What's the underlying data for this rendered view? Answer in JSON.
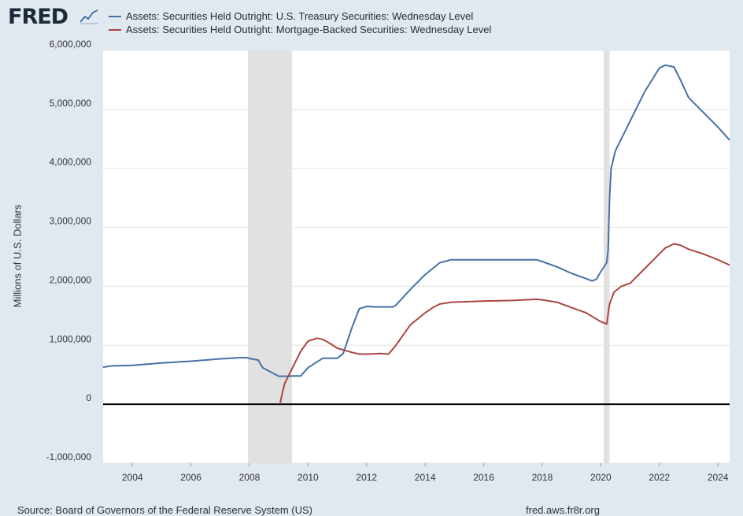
{
  "header": {
    "logo_text": "FRED",
    "logo_icon": "chart-line-icon"
  },
  "colors": {
    "background": "#e1e9f0",
    "plot_bg": "#ffffff",
    "recession": "#e1e1e1",
    "treasury": "#4572a7",
    "mbs": "#aa4643",
    "zero_line": "#000000"
  },
  "footer": {
    "source": "Source: Board of Governors of the Federal Reserve System (US)",
    "url": "fred.aws.fr8r.org"
  },
  "chart_data": {
    "type": "line",
    "title": "",
    "xlabel": "",
    "ylabel": "Millions of U.S. Dollars",
    "xlim": [
      2003.0,
      2024.4
    ],
    "ylim": [
      -1000000,
      6000000
    ],
    "y_ticks": [
      -1000000,
      0,
      1000000,
      2000000,
      3000000,
      4000000,
      5000000,
      6000000
    ],
    "y_tick_labels": [
      "-1,000,000",
      "0",
      "1,000,000",
      "2,000,000",
      "3,000,000",
      "4,000,000",
      "5,000,000",
      "6,000,000"
    ],
    "x_ticks": [
      2004,
      2006,
      2008,
      2010,
      2012,
      2014,
      2016,
      2018,
      2020,
      2022,
      2024
    ],
    "x_tick_labels": [
      "2004",
      "2006",
      "2008",
      "2010",
      "2012",
      "2014",
      "2016",
      "2018",
      "2020",
      "2022",
      "2024"
    ],
    "grid": true,
    "recessions": [
      [
        2007.95,
        2009.45
      ],
      [
        2020.1,
        2020.3
      ]
    ],
    "series": [
      {
        "name": "Assets: Securities Held Outright: U.S. Treasury Securities: Wednesday Level",
        "color": "#4572a7",
        "x": [
          2003.0,
          2003.3,
          2004.0,
          2005.0,
          2006.0,
          2007.0,
          2007.7,
          2007.9,
          2008.1,
          2008.3,
          2008.45,
          2009.0,
          2009.25,
          2009.5,
          2009.75,
          2010.0,
          2010.5,
          2010.75,
          2011.0,
          2011.2,
          2011.5,
          2011.75,
          2012.0,
          2012.3,
          2012.6,
          2012.9,
          2013.0,
          2013.5,
          2014.0,
          2014.5,
          2014.9,
          2015.5,
          2016.0,
          2017.0,
          2017.8,
          2018.0,
          2018.5,
          2019.0,
          2019.5,
          2019.7,
          2019.85,
          2020.0,
          2020.2,
          2020.25,
          2020.3,
          2020.35,
          2020.5,
          2021.0,
          2021.5,
          2022.0,
          2022.2,
          2022.5,
          2022.7,
          2023.0,
          2023.5,
          2024.0,
          2024.4
        ],
        "values": [
          630000,
          650000,
          660000,
          700000,
          730000,
          770000,
          790000,
          790000,
          765000,
          750000,
          620000,
          475000,
          475000,
          480000,
          480000,
          620000,
          780000,
          780000,
          780000,
          860000,
          1300000,
          1620000,
          1660000,
          1650000,
          1650000,
          1650000,
          1680000,
          1950000,
          2200000,
          2400000,
          2450000,
          2450000,
          2450000,
          2450000,
          2450000,
          2420000,
          2330000,
          2220000,
          2130000,
          2090000,
          2120000,
          2250000,
          2400000,
          2600000,
          3500000,
          4000000,
          4300000,
          4800000,
          5300000,
          5700000,
          5750000,
          5720000,
          5520000,
          5200000,
          4950000,
          4700000,
          4480000
        ]
      },
      {
        "name": "Assets: Securities Held Outright: Mortgage-Backed Securities: Wednesday Level",
        "color": "#aa4643",
        "x": [
          2009.05,
          2009.07,
          2009.2,
          2009.5,
          2009.75,
          2010.0,
          2010.3,
          2010.5,
          2010.75,
          2011.0,
          2011.5,
          2011.75,
          2012.0,
          2012.5,
          2012.75,
          2013.0,
          2013.5,
          2014.0,
          2014.3,
          2014.5,
          2014.9,
          2015.5,
          2016.0,
          2017.0,
          2017.8,
          2018.0,
          2018.5,
          2019.0,
          2019.5,
          2020.0,
          2020.2,
          2020.3,
          2020.45,
          2020.7,
          2021.0,
          2021.5,
          2022.0,
          2022.2,
          2022.5,
          2022.7,
          2023.0,
          2023.5,
          2024.0,
          2024.4
        ],
        "values": [
          0,
          80000,
          350000,
          650000,
          900000,
          1070000,
          1120000,
          1100000,
          1030000,
          950000,
          880000,
          850000,
          850000,
          860000,
          850000,
          1000000,
          1350000,
          1550000,
          1650000,
          1700000,
          1730000,
          1740000,
          1750000,
          1760000,
          1780000,
          1770000,
          1730000,
          1640000,
          1550000,
          1400000,
          1360000,
          1700000,
          1900000,
          2000000,
          2050000,
          2300000,
          2550000,
          2650000,
          2720000,
          2700000,
          2630000,
          2550000,
          2450000,
          2360000
        ]
      }
    ]
  }
}
